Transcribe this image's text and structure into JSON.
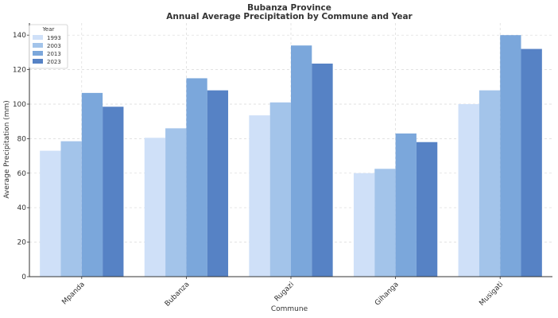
{
  "chart_data": {
    "type": "bar",
    "title": "Bubanza Province",
    "subtitle": "Annual Average Precipitation by Commune and Year",
    "xlabel": "Commune",
    "ylabel": "Average Precipitation (mm)",
    "categories": [
      "Mpanda",
      "Bubanza",
      "Rugazi",
      "Gihanga",
      "Musigati"
    ],
    "series": [
      {
        "name": "1993",
        "color": "#cfe0f8",
        "values": [
          73,
          80.5,
          93.5,
          60,
          100
        ]
      },
      {
        "name": "2003",
        "color": "#a3c4ea",
        "values": [
          78.5,
          86,
          101,
          62.5,
          108
        ]
      },
      {
        "name": "2013",
        "color": "#7ba7db",
        "values": [
          106.5,
          115,
          134,
          83,
          140
        ]
      },
      {
        "name": "2023",
        "color": "#5682c5",
        "values": [
          98.5,
          108,
          123.5,
          78,
          132
        ]
      }
    ],
    "ylim": [
      0,
      147
    ],
    "yticks": [
      0,
      20,
      40,
      60,
      80,
      100,
      120,
      140
    ],
    "grid": true,
    "legend": {
      "title": "Year",
      "placement": "top-left"
    }
  }
}
